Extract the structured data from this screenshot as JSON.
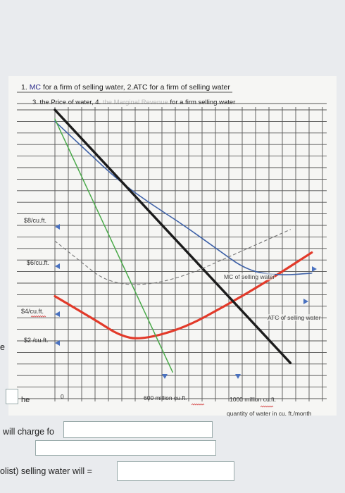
{
  "chart_data": {
    "type": "line",
    "title_line1_prefix": "1. ",
    "title_line1_mc": "MC",
    "title_line1_rest": " for a firm of selling water, 2.ATC for a firm of selling water",
    "title_line2_prefix": "3. the Price of water, 4. ",
    "title_line2_mr": "the Marginal Revenue",
    "title_line2_rest": " for a firm selling water",
    "y_tick_labels": [
      "$8/cu.ft.",
      "$6/cu.ft.",
      "$4/cu.ft.",
      "$2 /cu.ft."
    ],
    "x_tick_labels": [
      "0",
      "600 million cu.ft.",
      "1000 million cu.ft."
    ],
    "xlabel": "quantity of water in cu. ft./month",
    "curve_labels": [
      "MC of selling water",
      "ATC of selling water"
    ],
    "series": [
      {
        "name": "MC of selling water",
        "color": "#e23a2a",
        "x": [
          0,
          200,
          300,
          400,
          600,
          800,
          1000,
          1200
        ],
        "y": [
          3.9,
          2.8,
          2.2,
          2.0,
          2.5,
          3.5,
          4.6,
          5.8
        ]
      },
      {
        "name": "ATC of selling water",
        "color": "#3f62a8",
        "x": [
          0,
          150,
          300,
          450,
          600,
          750,
          900,
          1050,
          1200
        ],
        "y": [
          11.5,
          10.2,
          8.9,
          7.9,
          7.0,
          6.0,
          5.0,
          4.8,
          4.9
        ]
      },
      {
        "color": "#1c1c1c",
        "x": [
          0,
          1100
        ],
        "y": [
          12,
          1.0
        ]
      },
      {
        "color": "#4aaa4a",
        "x": [
          0,
          550
        ],
        "y": [
          11.6,
          0.6
        ]
      },
      {
        "color": "#777777",
        "x": [
          0,
          350,
          1100
        ],
        "y": [
          6.3,
          3.7,
          6.8
        ]
      }
    ],
    "xlim": [
      0,
      1250
    ],
    "ylim": [
      0,
      12
    ],
    "grid": true
  },
  "colors": {
    "mc": "#e23a2a",
    "atc": "#3f62a8",
    "demand": "#1c1c1c",
    "mr": "#4aaa4a",
    "dashed": "#777777",
    "arrow": "#4a72c0"
  },
  "question": {
    "label_left_a": "e",
    "label_left_b": "he",
    "line1": "will charge fo",
    "line2": "olist) selling water will ="
  }
}
